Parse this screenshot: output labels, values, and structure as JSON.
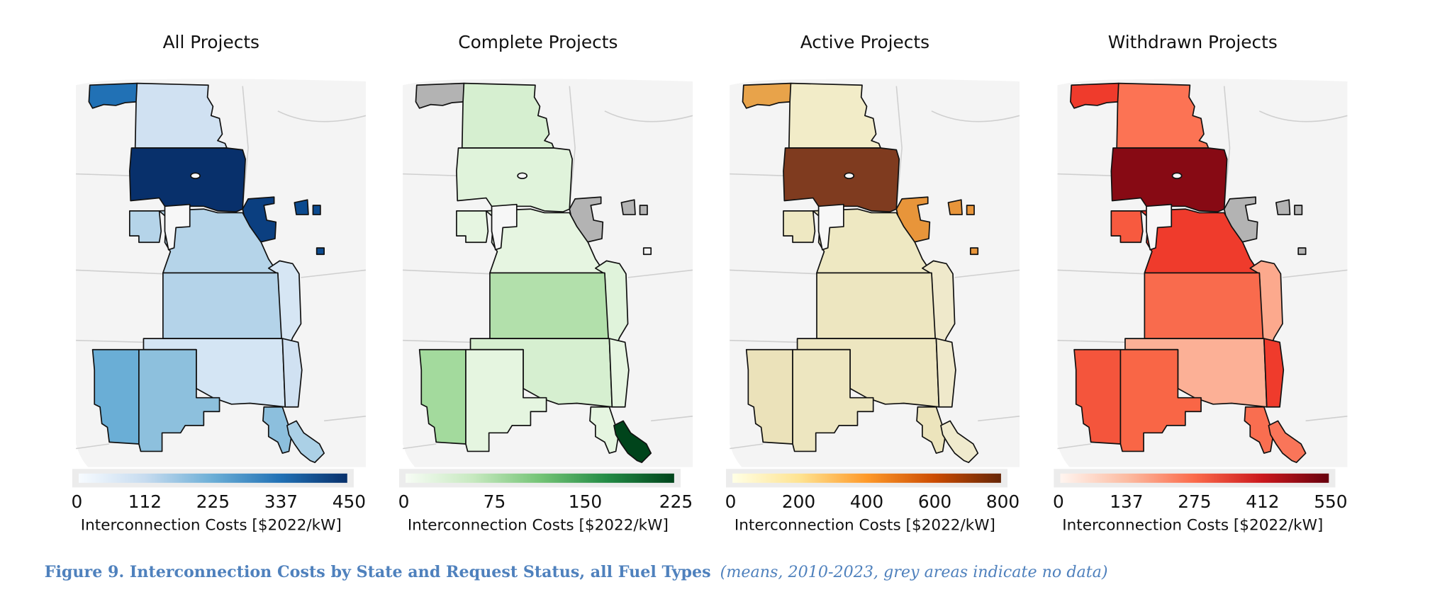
{
  "figure": {
    "caption_bold": "Figure 9. Interconnection Costs by State and Request Status, all Fuel Types",
    "caption_italic": "(means, 2010-2023, grey areas indicate no data)",
    "background_color": "#f4f4f4",
    "no_data_color": "#b3b3b3"
  },
  "chart_data": [
    {
      "type": "choropleth",
      "title": "All Projects",
      "colorbar": {
        "label": "Interconnection Costs [$2022/kW]",
        "ticks": [
          "0",
          "112",
          "225",
          "337",
          "450"
        ],
        "range": [
          0,
          450
        ],
        "colormap": [
          "#f7fbff",
          "#c6dbef",
          "#6baed6",
          "#2171b5",
          "#08306b"
        ]
      },
      "fills": {
        "mt": "#2171b5",
        "nd": "#d0e1f2",
        "sd": "#08306b",
        "mn": "#0b3f80",
        "sq1": "#0b4a8f",
        "sq2": "#0b4a8f",
        "sq3": "#0b4a8f",
        "ne": "#b5d4e9",
        "strip": "#b5d4e9",
        "ia": "#d6e6f4",
        "ks": "#b4d3e9",
        "ok": "#d4e5f4",
        "nmw": "#6aaed6",
        "nme": "#8dc0dd",
        "tx": "#8cbfdd",
        "la": "#abd0e6",
        "ar": "#d0e1f2"
      }
    },
    {
      "type": "choropleth",
      "title": "Complete Projects",
      "colorbar": {
        "label": "Interconnection Costs [$2022/kW]",
        "ticks": [
          "0",
          "75",
          "150",
          "225"
        ],
        "range": [
          0,
          225
        ],
        "colormap": [
          "#f7fcf5",
          "#c7e9c0",
          "#74c476",
          "#238b45",
          "#00441b"
        ]
      },
      "fills": {
        "mt": "#b3b3b3",
        "nd": "#d6efd0",
        "sd": "#e0f3db",
        "mn": "#b3b3b3",
        "sq1": "#b3b3b3",
        "sq2": "#b3b3b3",
        "sq3": "#f4f4f4",
        "ne": "#e6f5e1",
        "strip": "#e6f5e1",
        "ia": "#e0f3db",
        "ks": "#b2e0ab",
        "ok": "#d6efd0",
        "nmw": "#a3da9d",
        "nme": "#e5f5e0",
        "tx": "#e5f5e0",
        "la": "#00441b",
        "ar": "#e5f5e0"
      }
    },
    {
      "type": "choropleth",
      "title": "Active Projects",
      "colorbar": {
        "label": "Interconnection Costs [$2022/kW]",
        "ticks": [
          "0",
          "200",
          "400",
          "600",
          "800"
        ],
        "range": [
          0,
          800
        ],
        "colormap": [
          "#ffffe5",
          "#fee391",
          "#fe9929",
          "#cc4c02",
          "#662506"
        ]
      },
      "fills": {
        "mt": "#e8a34a",
        "nd": "#f2ecc8",
        "sd": "#7f3b1f",
        "mn": "#e8953a",
        "sq1": "#e8953a",
        "sq2": "#e8953a",
        "sq3": "#e8953a",
        "ne": "#eee8c2",
        "strip": "#eee8c2",
        "ia": "#efe9cb",
        "ks": "#ede6c0",
        "ok": "#ede6c0",
        "nmw": "#ebe2ba",
        "nme": "#ede6c0",
        "tx": "#ece4bc",
        "la": "#efeacd",
        "ar": "#efe9cb"
      }
    },
    {
      "type": "choropleth",
      "title": "Withdrawn Projects",
      "colorbar": {
        "label": "Interconnection Costs [$2022/kW]",
        "ticks": [
          "0",
          "137",
          "275",
          "412",
          "550"
        ],
        "range": [
          0,
          550
        ],
        "colormap": [
          "#fff5f0",
          "#fcbba1",
          "#fb6a4a",
          "#cb181d",
          "#67000d"
        ]
      },
      "fills": {
        "mt": "#ef3b2c",
        "nd": "#fc7354",
        "sd": "#870a14",
        "mn": "#b3b3b3",
        "sq1": "#b3b3b3",
        "sq2": "#b3b3b3",
        "sq3": "#b3b3b3",
        "ne": "#ef3b2c",
        "strip": "#f75a3f",
        "ia": "#fca98d",
        "ks": "#f96b4d",
        "ok": "#fcb096",
        "nmw": "#f4553c",
        "nme": "#f96646",
        "tx": "#f96e50",
        "la": "#f97559",
        "ar": "#ef3b2c"
      }
    }
  ]
}
